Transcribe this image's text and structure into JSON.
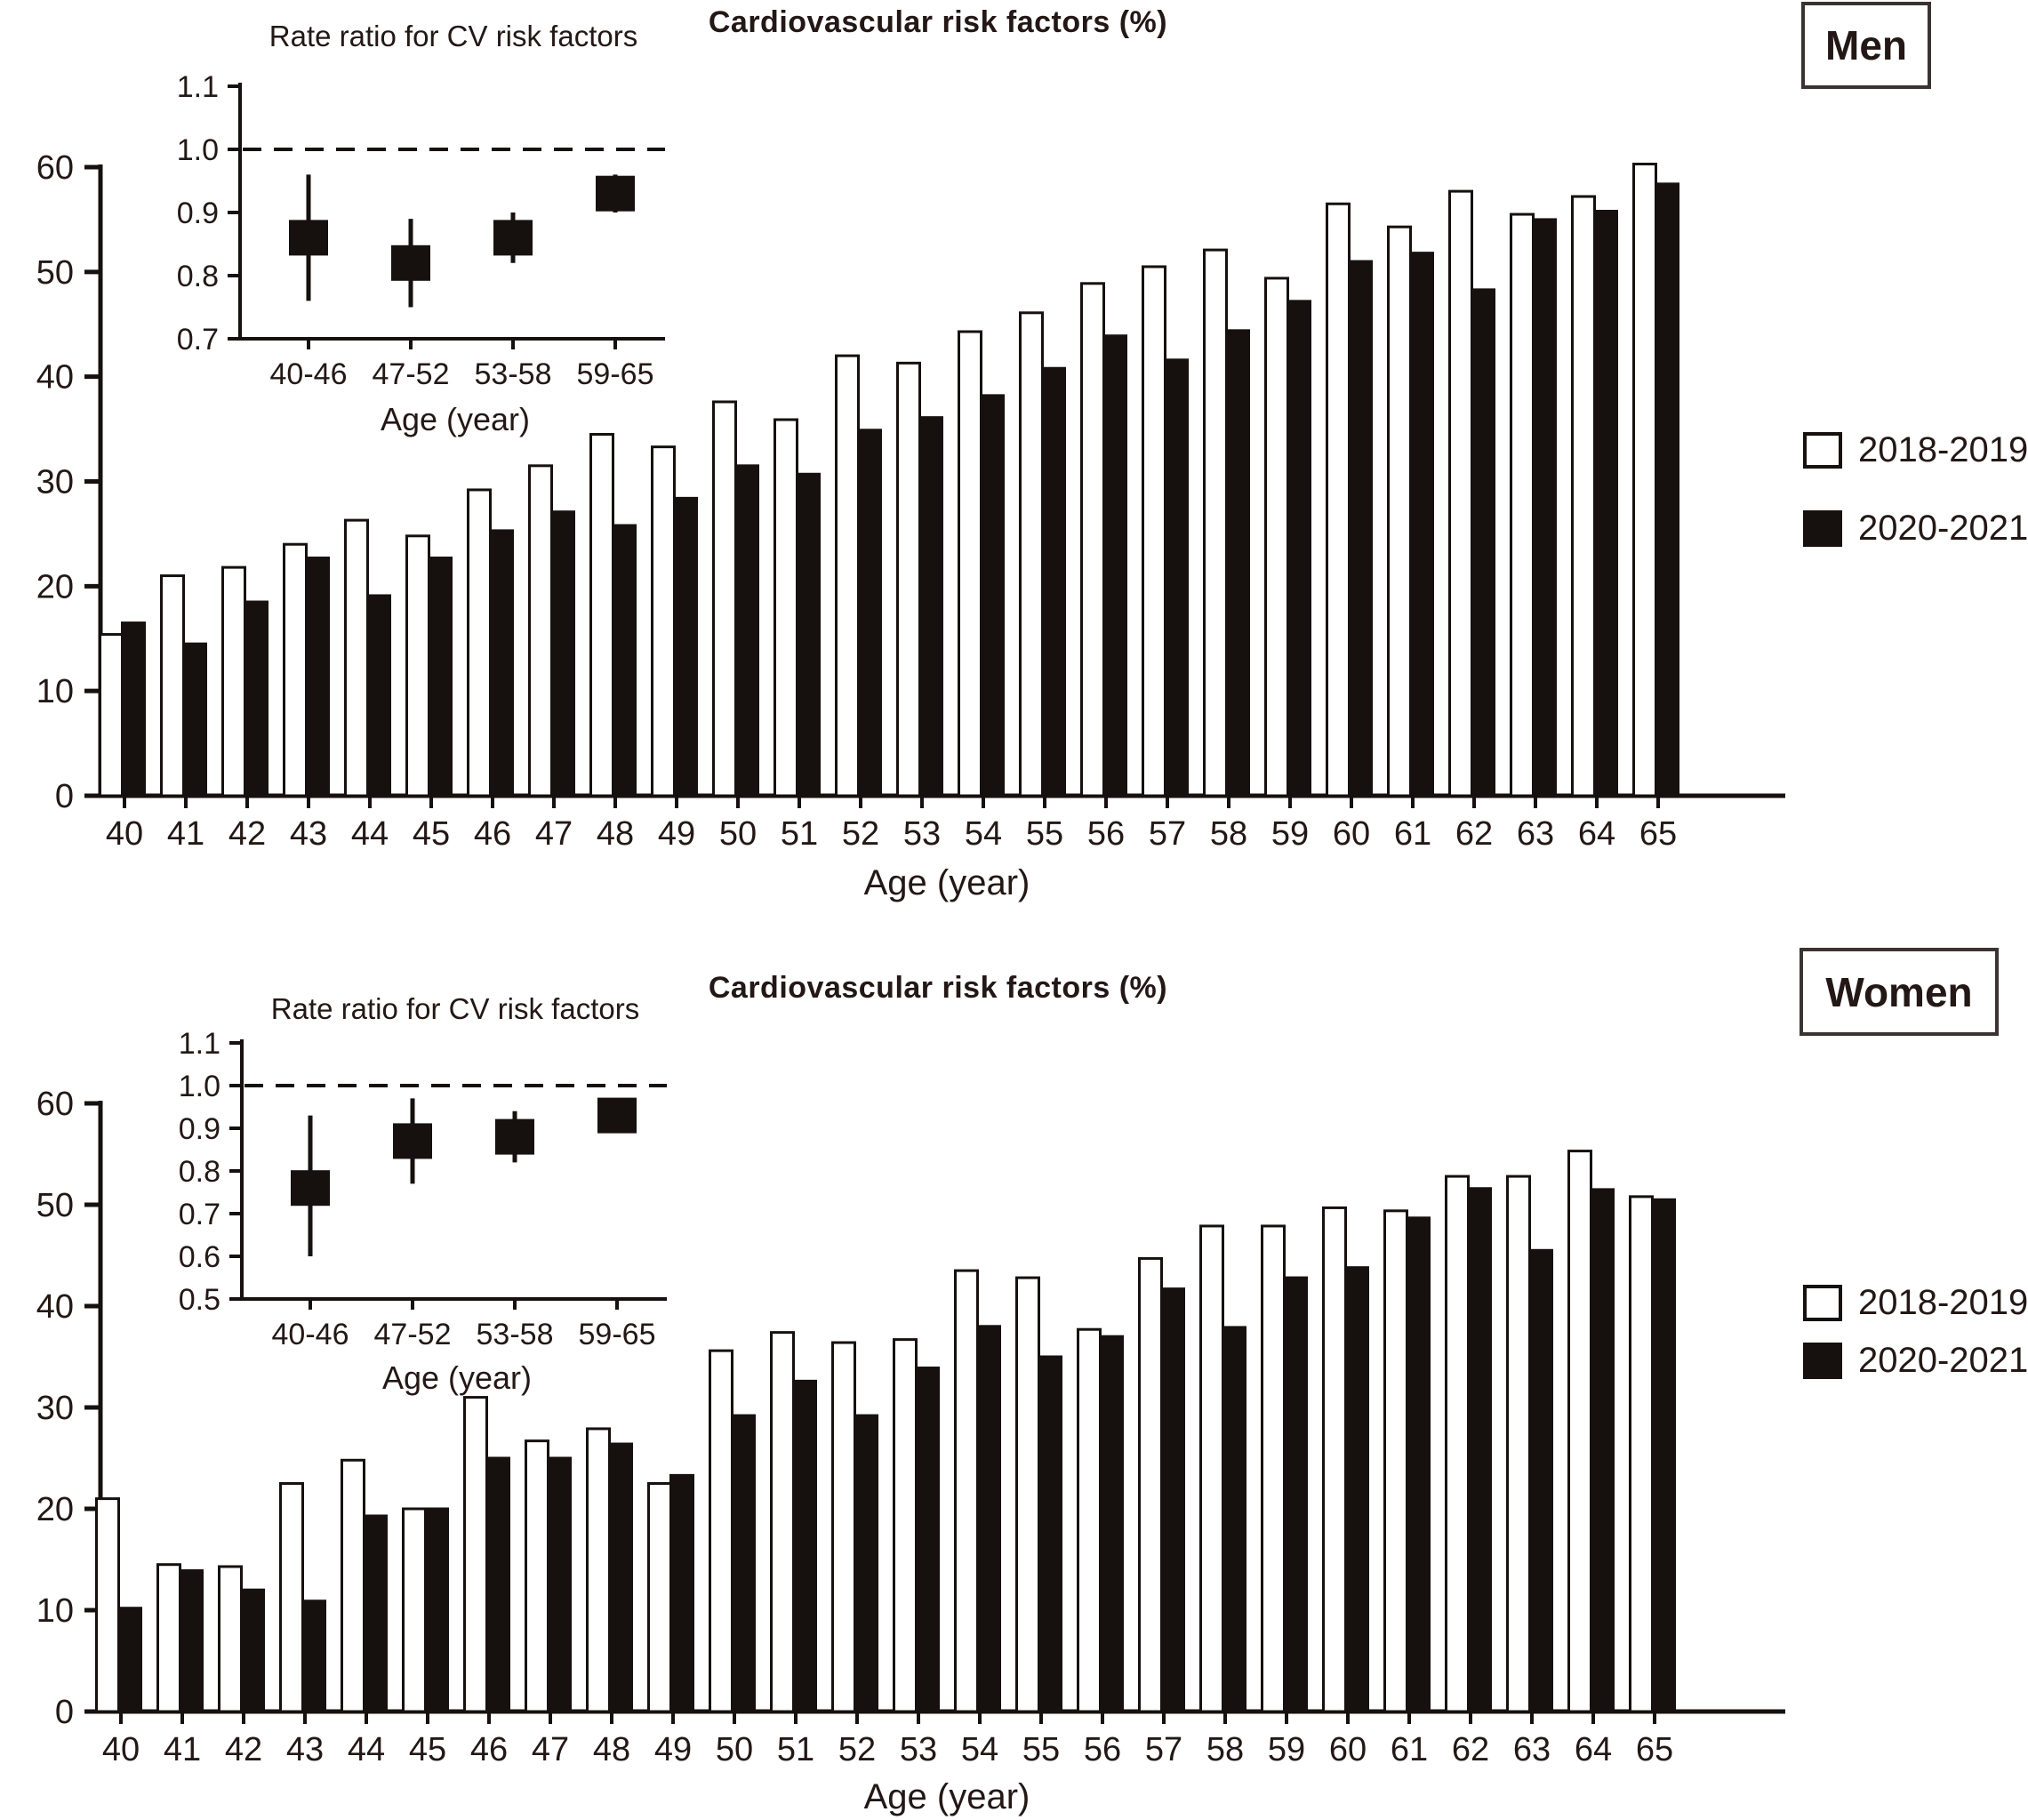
{
  "colors": {
    "ink": "#16100e",
    "text": "#231815",
    "bar_2018_2019": "#ffffff",
    "bar_2020_2021": "#16100e",
    "background": "#ffffff"
  },
  "chart_data": [
    {
      "type": "bar",
      "panel_label": "Men",
      "title": "Cardiovascular risk factors (%)",
      "xlabel": "Age (year)",
      "ylabel": "",
      "ylim": [
        0,
        60
      ],
      "yticks": [
        0,
        10,
        20,
        30,
        40,
        50,
        60
      ],
      "categories": [
        40,
        41,
        42,
        43,
        44,
        45,
        46,
        47,
        48,
        49,
        50,
        51,
        52,
        53,
        54,
        55,
        56,
        57,
        58,
        59,
        60,
        61,
        62,
        63,
        64,
        65
      ],
      "grid": false,
      "legend_position": "right",
      "series": [
        {
          "name": "2018-2019",
          "fill": "#ffffff",
          "values": [
            15.4,
            21.0,
            21.8,
            24.0,
            26.3,
            24.8,
            29.2,
            31.5,
            34.5,
            33.3,
            37.6,
            35.9,
            42.0,
            41.3,
            44.3,
            46.1,
            48.9,
            50.5,
            52.1,
            49.4,
            56.5,
            54.3,
            57.7,
            55.5,
            57.2,
            60.3
          ]
        },
        {
          "name": "2020-2021",
          "fill": "#16100e",
          "values": [
            16.5,
            14.5,
            18.5,
            22.7,
            19.1,
            22.7,
            25.3,
            27.1,
            25.8,
            28.4,
            31.5,
            30.7,
            34.9,
            36.1,
            38.2,
            40.8,
            43.9,
            41.6,
            44.4,
            47.2,
            51.0,
            51.8,
            48.3,
            55.0,
            55.8,
            58.4
          ]
        }
      ],
      "inset": {
        "type": "scatter-ci",
        "title": "Rate ratio for CV risk factors",
        "xlabel": "Age (year)",
        "categories": [
          "40-46",
          "47-52",
          "53-58",
          "59-65"
        ],
        "ylim": [
          0.7,
          1.1
        ],
        "yticks": [
          0.7,
          0.8,
          0.9,
          1.0,
          1.1
        ],
        "reference_line": 1.0,
        "points": [
          {
            "value": 0.86,
            "ci_low": 0.76,
            "ci_high": 0.96
          },
          {
            "value": 0.82,
            "ci_low": 0.75,
            "ci_high": 0.89
          },
          {
            "value": 0.86,
            "ci_low": 0.82,
            "ci_high": 0.9
          },
          {
            "value": 0.93,
            "ci_low": 0.9,
            "ci_high": 0.96
          }
        ]
      }
    },
    {
      "type": "bar",
      "panel_label": "Women",
      "title": "Cardiovascular risk factors (%)",
      "xlabel": "Age (year)",
      "ylabel": "",
      "ylim": [
        0,
        60
      ],
      "yticks": [
        0,
        10,
        20,
        30,
        40,
        50,
        60
      ],
      "categories": [
        40,
        41,
        42,
        43,
        44,
        45,
        46,
        47,
        48,
        49,
        50,
        51,
        52,
        53,
        54,
        55,
        56,
        57,
        58,
        59,
        60,
        61,
        62,
        63,
        64,
        65
      ],
      "grid": false,
      "legend_position": "right",
      "series": [
        {
          "name": "2018-2019",
          "fill": "#ffffff",
          "values": [
            21.0,
            14.5,
            14.3,
            22.5,
            24.8,
            20.0,
            31.0,
            26.7,
            27.9,
            22.5,
            35.6,
            37.4,
            36.4,
            36.7,
            43.5,
            42.8,
            37.7,
            44.7,
            47.9,
            47.9,
            49.7,
            49.4,
            52.8,
            52.8,
            55.3,
            50.8
          ]
        },
        {
          "name": "2020-2021",
          "fill": "#16100e",
          "values": [
            10.2,
            13.9,
            12.0,
            10.9,
            19.3,
            20.0,
            25.0,
            25.0,
            26.4,
            23.3,
            29.2,
            32.6,
            29.2,
            33.9,
            38.0,
            35.0,
            37.0,
            41.7,
            37.9,
            42.8,
            43.8,
            48.7,
            51.6,
            45.5,
            51.5,
            50.5
          ]
        }
      ],
      "inset": {
        "type": "scatter-ci",
        "title": "Rate ratio for CV risk factors",
        "xlabel": "Age (year)",
        "categories": [
          "40-46",
          "47-52",
          "53-58",
          "59-65"
        ],
        "ylim": [
          0.5,
          1.1
        ],
        "yticks": [
          0.5,
          0.6,
          0.7,
          0.8,
          0.9,
          1.0,
          1.1
        ],
        "reference_line": 1.0,
        "points": [
          {
            "value": 0.76,
            "ci_low": 0.6,
            "ci_high": 0.93
          },
          {
            "value": 0.87,
            "ci_low": 0.77,
            "ci_high": 0.97
          },
          {
            "value": 0.88,
            "ci_low": 0.82,
            "ci_high": 0.94
          },
          {
            "value": 0.93,
            "ci_low": 0.89,
            "ci_high": 0.97
          }
        ]
      }
    }
  ]
}
